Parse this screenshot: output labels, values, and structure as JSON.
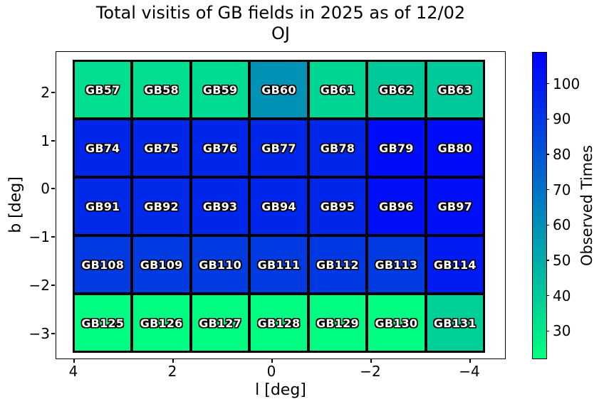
{
  "figure": {
    "title_line1": "Total visitis of GB fields in 2025 as of 12/02",
    "title_line2": "OJ"
  },
  "chart_data": {
    "type": "heatmap",
    "title": "Total visitis of GB fields in 2025 as of 12/02 OJ",
    "xlabel": "l [deg]",
    "ylabel": "b [deg]",
    "x_tick_labels": [
      "4",
      "2",
      "0",
      "−2",
      "−4"
    ],
    "y_tick_labels": [
      "2",
      "1",
      "0",
      "−1",
      "−2",
      "−3"
    ],
    "x_axis_descending": true,
    "grid_shape": [
      5,
      7
    ],
    "colormap": "winter_r",
    "colorbar": {
      "label": "Observed Times",
      "ticks": [
        100,
        90,
        80,
        70,
        60,
        50,
        40,
        30
      ],
      "vmin": 22,
      "vmax": 109,
      "top_color": "#0000ff",
      "bottom_color": "#00ff80"
    },
    "fields": [
      {
        "name": "GB57",
        "row": 0,
        "col": 0,
        "observed_times": 33
      },
      {
        "name": "GB58",
        "row": 0,
        "col": 1,
        "observed_times": 33
      },
      {
        "name": "GB59",
        "row": 0,
        "col": 2,
        "observed_times": 34
      },
      {
        "name": "GB60",
        "row": 0,
        "col": 3,
        "observed_times": 59
      },
      {
        "name": "GB61",
        "row": 0,
        "col": 4,
        "observed_times": 36
      },
      {
        "name": "GB62",
        "row": 0,
        "col": 5,
        "observed_times": 40
      },
      {
        "name": "GB63",
        "row": 0,
        "col": 6,
        "observed_times": 40
      },
      {
        "name": "GB74",
        "row": 1,
        "col": 0,
        "observed_times": 96
      },
      {
        "name": "GB75",
        "row": 1,
        "col": 1,
        "observed_times": 96
      },
      {
        "name": "GB76",
        "row": 1,
        "col": 2,
        "observed_times": 96
      },
      {
        "name": "GB77",
        "row": 1,
        "col": 3,
        "observed_times": 96
      },
      {
        "name": "GB78",
        "row": 1,
        "col": 4,
        "observed_times": 96
      },
      {
        "name": "GB79",
        "row": 1,
        "col": 5,
        "observed_times": 105
      },
      {
        "name": "GB80",
        "row": 1,
        "col": 6,
        "observed_times": 105
      },
      {
        "name": "GB91",
        "row": 2,
        "col": 0,
        "observed_times": 95
      },
      {
        "name": "GB92",
        "row": 2,
        "col": 1,
        "observed_times": 95
      },
      {
        "name": "GB93",
        "row": 2,
        "col": 2,
        "observed_times": 96
      },
      {
        "name": "GB94",
        "row": 2,
        "col": 3,
        "observed_times": 96
      },
      {
        "name": "GB95",
        "row": 2,
        "col": 4,
        "observed_times": 96
      },
      {
        "name": "GB96",
        "row": 2,
        "col": 5,
        "observed_times": 104
      },
      {
        "name": "GB97",
        "row": 2,
        "col": 6,
        "observed_times": 104
      },
      {
        "name": "GB108",
        "row": 3,
        "col": 0,
        "observed_times": 89
      },
      {
        "name": "GB109",
        "row": 3,
        "col": 1,
        "observed_times": 89
      },
      {
        "name": "GB110",
        "row": 3,
        "col": 2,
        "observed_times": 89
      },
      {
        "name": "GB111",
        "row": 3,
        "col": 3,
        "observed_times": 89
      },
      {
        "name": "GB112",
        "row": 3,
        "col": 4,
        "observed_times": 90
      },
      {
        "name": "GB113",
        "row": 3,
        "col": 5,
        "observed_times": 89
      },
      {
        "name": "GB114",
        "row": 3,
        "col": 6,
        "observed_times": 100
      },
      {
        "name": "GB125",
        "row": 4,
        "col": 0,
        "observed_times": 23
      },
      {
        "name": "GB126",
        "row": 4,
        "col": 1,
        "observed_times": 23
      },
      {
        "name": "GB127",
        "row": 4,
        "col": 2,
        "observed_times": 23
      },
      {
        "name": "GB128",
        "row": 4,
        "col": 3,
        "observed_times": 23
      },
      {
        "name": "GB129",
        "row": 4,
        "col": 4,
        "observed_times": 23
      },
      {
        "name": "GB130",
        "row": 4,
        "col": 5,
        "observed_times": 23
      },
      {
        "name": "GB131",
        "row": 4,
        "col": 6,
        "observed_times": 38
      }
    ]
  }
}
